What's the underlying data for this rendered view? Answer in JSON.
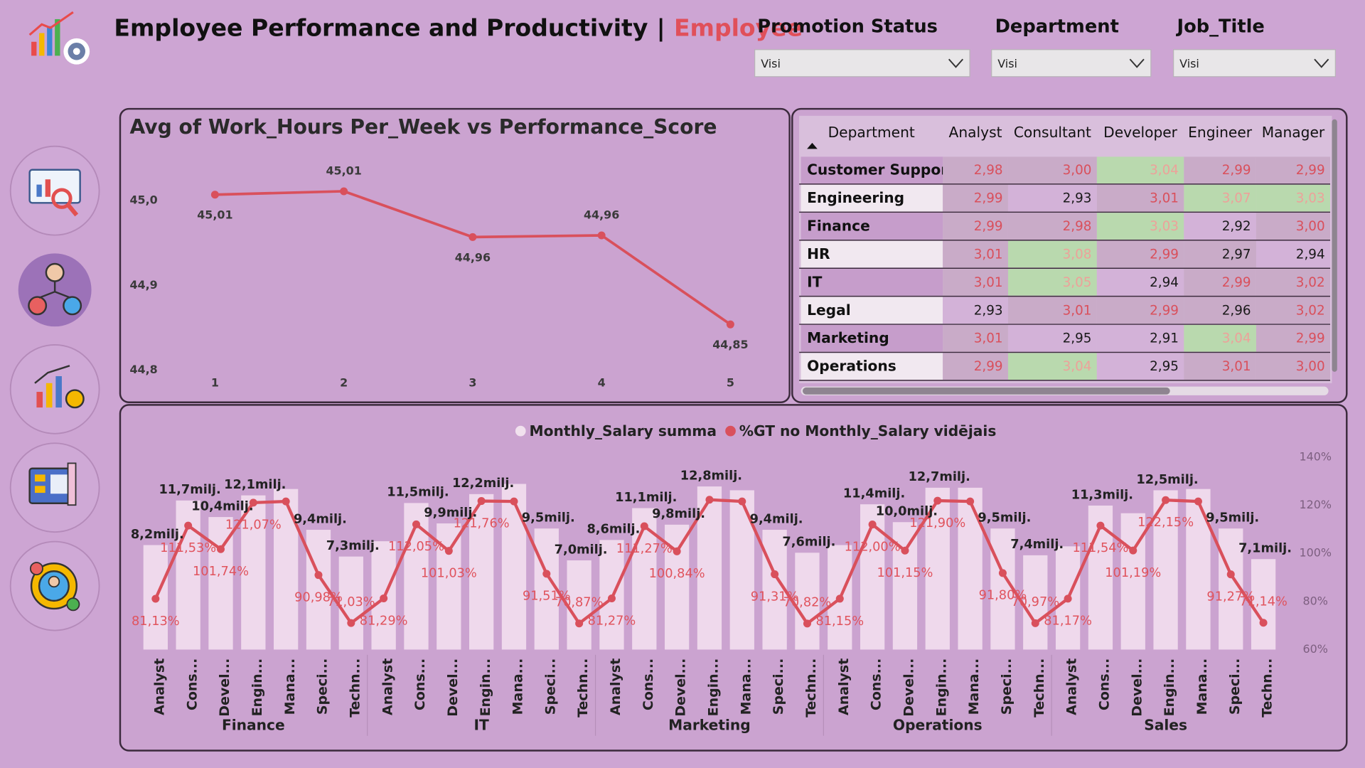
{
  "header": {
    "title": "Employee Performance and Productivity",
    "separator": "|",
    "page": "Employee"
  },
  "filters": [
    {
      "label": "Promotion Status",
      "value": "Visi"
    },
    {
      "label": "Department",
      "value": "Visi"
    },
    {
      "label": "Job_Title",
      "value": "Visi"
    }
  ],
  "table": {
    "columns": [
      "Department",
      "Analyst",
      "Consultant",
      "Developer",
      "Engineer",
      "Manager"
    ],
    "rows": [
      [
        "Customer Support",
        "2,98",
        "3,00",
        "3,04",
        "2,99",
        "2,99"
      ],
      [
        "Engineering",
        "2,99",
        "2,93",
        "3,01",
        "3,07",
        "3,03"
      ],
      [
        "Finance",
        "2,99",
        "2,98",
        "3,03",
        "2,92",
        "3,00"
      ],
      [
        "HR",
        "3,01",
        "3,08",
        "2,99",
        "2,97",
        "2,94"
      ],
      [
        "IT",
        "3,01",
        "3,05",
        "2,94",
        "2,99",
        "3,02"
      ],
      [
        "Legal",
        "2,93",
        "3,01",
        "2,99",
        "2,96",
        "3,02"
      ],
      [
        "Marketing",
        "3,01",
        "2,95",
        "2,91",
        "3,04",
        "2,99"
      ],
      [
        "Operations",
        "2,99",
        "3,04",
        "2,95",
        "3,01",
        "3,00"
      ]
    ]
  },
  "chart_data": [
    {
      "type": "line",
      "title": "Avg of Work_Hours Per_Week vs Performance_Score",
      "x": [
        1,
        2,
        3,
        4,
        5
      ],
      "values": [
        45.007,
        45.011,
        44.957,
        44.959,
        44.854
      ],
      "value_labels": [
        "45,01",
        "45,01",
        "44,96",
        "44,96",
        "44,85"
      ],
      "color": "#d9505c",
      "xlim": [
        0.345,
        5.412
      ],
      "xticks": [
        1,
        2,
        3,
        4,
        5
      ],
      "ylim": [
        44.795,
        45.062
      ],
      "yticks": [
        {
          "value": 45.0,
          "label": "45,0"
        },
        {
          "value": 44.9,
          "label": "44,9"
        },
        {
          "value": 44.8,
          "label": "44,8"
        }
      ]
    },
    {
      "type": "combo",
      "categories": [
        "Analyst",
        "Cons...",
        "Devel...",
        "Engin...",
        "Mana...",
        "Speci...",
        "Techn...",
        "Analyst",
        "Cons...",
        "Devel...",
        "Engin...",
        "Mana...",
        "Speci...",
        "Techn...",
        "Analyst",
        "Cons...",
        "Devel...",
        "Engin...",
        "Mana...",
        "Speci...",
        "Techn...",
        "Analyst",
        "Cons...",
        "Devel...",
        "Engin...",
        "Mana...",
        "Speci...",
        "Techn...",
        "Analyst",
        "Cons...",
        "Devel...",
        "Engin...",
        "Mana...",
        "Speci...",
        "Techn..."
      ],
      "groups": [
        "Finance",
        "IT",
        "Marketing",
        "Operations",
        "Sales"
      ],
      "series": [
        {
          "name": "Monthly_Salary summa",
          "type": "bar",
          "color": "#efd9ec",
          "values": [
            8.2,
            11.7,
            10.4,
            12.1,
            12.6,
            9.4,
            7.3,
            8.5,
            11.5,
            9.9,
            12.2,
            13.0,
            9.5,
            7.0,
            8.6,
            11.1,
            9.8,
            12.8,
            12.5,
            9.4,
            7.6,
            8.2,
            11.4,
            10.0,
            12.7,
            12.7,
            9.5,
            7.4,
            8.1,
            11.3,
            10.7,
            12.5,
            12.6,
            9.5,
            7.1
          ],
          "value_labels": [
            "8,2milj.",
            "11,7milj.",
            "10,4milj.",
            "12,1milj.",
            null,
            "9,4milj.",
            "7,3milj.",
            null,
            "11,5milj.",
            "9,9milj.",
            "12,2milj.",
            null,
            "9,5milj.",
            "7,0milj.",
            "8,6milj.",
            "11,1milj.",
            "9,8milj.",
            "12,8milj.",
            null,
            "9,4milj.",
            "7,6milj.",
            null,
            "11,4milj.",
            "10,0milj.",
            "12,7milj.",
            null,
            "9,5milj.",
            "7,4milj.",
            null,
            "11,3milj.",
            null,
            "12,5milj.",
            null,
            "9,5milj.",
            "7,1milj."
          ]
        },
        {
          "name": "%GT no Monthly_Salary vidējais",
          "type": "line",
          "color": "#d9505c",
          "axis": "y2",
          "values": [
            81.13,
            111.53,
            101.74,
            121.07,
            121.6,
            90.98,
            71.03,
            81.29,
            112.05,
            101.03,
            121.76,
            121.6,
            91.51,
            70.87,
            81.27,
            111.27,
            100.84,
            122.3,
            121.6,
            91.31,
            70.82,
            81.15,
            112.0,
            101.15,
            121.9,
            121.6,
            91.8,
            70.97,
            81.17,
            111.54,
            101.19,
            122.15,
            121.6,
            91.27,
            71.14
          ],
          "value_labels": [
            "81,13%",
            "111,53%",
            "101,74%",
            "121,07%",
            null,
            "90,98%",
            "71,03%",
            "81,29%",
            "112,05%",
            "101,03%",
            "121,76%",
            null,
            "91,51%",
            "70,87%",
            "81,27%",
            "111,27%",
            "100,84%",
            null,
            null,
            "91,31%",
            "70,82%",
            "81,15%",
            "112,00%",
            "101,15%",
            "121,90%",
            null,
            "91,80%",
            "70,97%",
            "81,17%",
            "111,54%",
            "101,19%",
            "122,15%",
            null,
            "91,27%",
            "71,14%"
          ]
        }
      ],
      "ylim": [
        0,
        15.1
      ],
      "y2lim": [
        60,
        140
      ],
      "y2ticks": [
        {
          "value": 60,
          "label": "60%"
        },
        {
          "value": 80,
          "label": "80%"
        },
        {
          "value": 100,
          "label": "100%"
        },
        {
          "value": 120,
          "label": "120%"
        },
        {
          "value": 140,
          "label": "140%"
        }
      ]
    }
  ]
}
